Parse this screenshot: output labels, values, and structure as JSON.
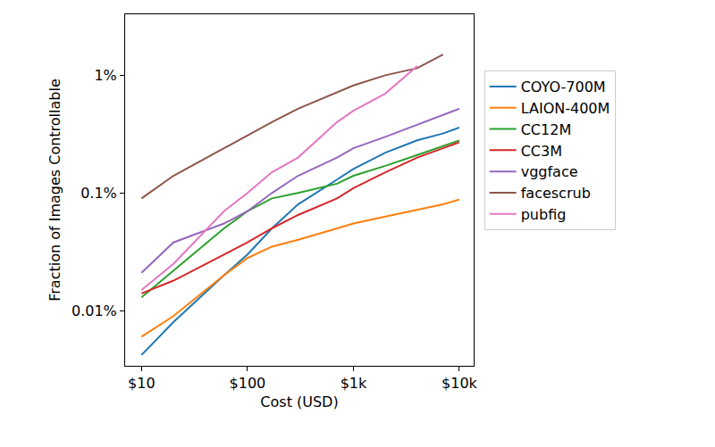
{
  "chart_data": {
    "type": "line",
    "x_label": "Cost (USD)",
    "y_label": "Fraction of Images Controllable",
    "log": true,
    "grid": false,
    "legend": "right",
    "x": [
      10,
      20,
      60,
      100,
      170,
      300,
      700,
      1000,
      2000,
      4000,
      7000,
      10000
    ],
    "xlim": [
      7,
      13650
    ],
    "xticks": [
      {
        "value": 10,
        "label": "$10"
      },
      {
        "value": 100,
        "label": "$100"
      },
      {
        "value": 1000,
        "label": "$1k"
      },
      {
        "value": 10000,
        "label": "$10k"
      }
    ],
    "ylim": [
      0.0034,
      3.3
    ],
    "yticks": [
      {
        "value": 0.01,
        "label": "0.01%"
      },
      {
        "value": 0.1,
        "label": "0.1%"
      },
      {
        "value": 1,
        "label": "1%"
      }
    ],
    "series": [
      {
        "name": "COYO-700M",
        "color": "#1f77b4",
        "values": [
          0.0042,
          0.008,
          0.02,
          0.03,
          0.05,
          0.08,
          0.13,
          0.16,
          0.22,
          0.28,
          0.32,
          0.36
        ]
      },
      {
        "name": "LAION-400M",
        "color": "#ff7f0e",
        "values": [
          0.006,
          0.009,
          0.02,
          0.028,
          0.035,
          0.04,
          0.05,
          0.055,
          0.063,
          0.072,
          0.08,
          0.088
        ]
      },
      {
        "name": "CC12M",
        "color": "#2ca02c",
        "values": [
          0.013,
          0.022,
          0.05,
          0.07,
          0.09,
          0.1,
          0.12,
          0.14,
          0.17,
          0.21,
          0.25,
          0.28
        ]
      },
      {
        "name": "CC3M",
        "color": "#d62728",
        "values": [
          0.014,
          0.018,
          0.03,
          0.038,
          0.05,
          0.065,
          0.09,
          0.11,
          0.15,
          0.2,
          0.24,
          0.27
        ]
      },
      {
        "name": "vggface",
        "color": "#9467bd",
        "values": [
          0.021,
          0.038,
          0.055,
          0.07,
          0.1,
          0.14,
          0.2,
          0.24,
          0.3,
          0.38,
          0.46,
          0.52
        ]
      },
      {
        "name": "facescrub",
        "color": "#8c564b",
        "values": [
          0.09,
          0.14,
          0.24,
          0.31,
          0.4,
          0.52,
          0.72,
          0.82,
          1.0,
          1.15,
          1.5,
          null
        ]
      },
      {
        "name": "pubfig",
        "color": "#e377c2",
        "values": [
          0.015,
          0.025,
          0.07,
          0.1,
          0.15,
          0.2,
          0.4,
          0.5,
          0.7,
          1.2,
          null,
          null
        ]
      }
    ]
  }
}
